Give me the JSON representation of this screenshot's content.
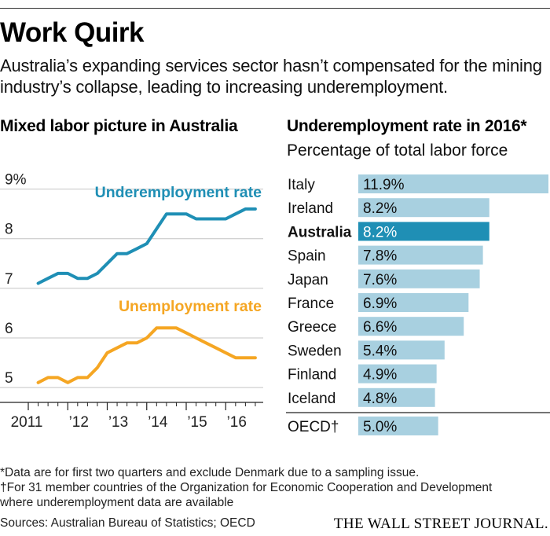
{
  "title": "Work Quirk",
  "subtitle": "Australia’s expanding services sector hasn’t compensated for the mining industry’s collapse, leading to increasing underemployment.",
  "colors": {
    "underemployment": "#1f8fb5",
    "unemployment": "#f5a623",
    "bar": "#a8d0e0",
    "bar_highlight": "#1f8fb5"
  },
  "chart_data": [
    {
      "type": "line",
      "title": "Mixed labor picture in Australia",
      "x_tick_labels": [
        "2011",
        "’12",
        "’13",
        "’14",
        "’15",
        "’16"
      ],
      "y_tick_labels": [
        "9%",
        "8",
        "7",
        "6",
        "5"
      ],
      "ylim": [
        4.7,
        9.2
      ],
      "xlim": [
        2011,
        2016.95
      ],
      "series": [
        {
          "name": "Underemployment rate",
          "x": [
            2011.25,
            2011.5,
            2011.75,
            2012.0,
            2012.25,
            2012.5,
            2012.75,
            2013.0,
            2013.25,
            2013.5,
            2013.75,
            2014.0,
            2014.25,
            2014.5,
            2014.75,
            2015.0,
            2015.25,
            2015.5,
            2015.75,
            2016.0,
            2016.25,
            2016.5,
            2016.75
          ],
          "values": [
            7.1,
            7.2,
            7.3,
            7.3,
            7.2,
            7.2,
            7.3,
            7.5,
            7.7,
            7.7,
            7.8,
            7.9,
            8.2,
            8.5,
            8.5,
            8.5,
            8.4,
            8.4,
            8.4,
            8.4,
            8.5,
            8.6,
            8.6
          ]
        },
        {
          "name": "Unemployment rate",
          "x": [
            2011.25,
            2011.5,
            2011.75,
            2012.0,
            2012.25,
            2012.5,
            2012.75,
            2013.0,
            2013.25,
            2013.5,
            2013.75,
            2014.0,
            2014.25,
            2014.5,
            2014.75,
            2015.0,
            2015.25,
            2015.5,
            2015.75,
            2016.0,
            2016.25,
            2016.5,
            2016.75
          ],
          "values": [
            5.1,
            5.2,
            5.2,
            5.1,
            5.2,
            5.2,
            5.4,
            5.7,
            5.8,
            5.9,
            5.9,
            6.0,
            6.2,
            6.2,
            6.2,
            6.1,
            6.0,
            5.9,
            5.8,
            5.7,
            5.6,
            5.6,
            5.6
          ]
        }
      ]
    },
    {
      "type": "bar",
      "title": "Underemployment rate in 2016*",
      "subtitle": "Percentage of total labor force",
      "categories": [
        "Italy",
        "Ireland",
        "Australia",
        "Spain",
        "Japan",
        "France",
        "Greece",
        "Sweden",
        "Finland",
        "Iceland",
        "OECD†"
      ],
      "values": [
        11.9,
        8.2,
        8.2,
        7.8,
        7.6,
        6.9,
        6.6,
        5.4,
        4.9,
        4.8,
        5.0
      ],
      "value_labels": [
        "11.9%",
        "8.2%",
        "8.2%",
        "7.8%",
        "7.6%",
        "6.9%",
        "6.6%",
        "5.4%",
        "4.9%",
        "4.8%",
        "5.0%"
      ],
      "highlight": "Australia"
    }
  ],
  "footnotes": [
    "*Data are for first two quarters and exclude Denmark due to a sampling issue.",
    "†For 31 member countries of the Organization for Economic Cooperation and Development",
    "where underemployment data are available"
  ],
  "sources": "Sources: Australian Bureau of Statistics; OECD",
  "publisher": "THE WALL STREET JOURNAL."
}
